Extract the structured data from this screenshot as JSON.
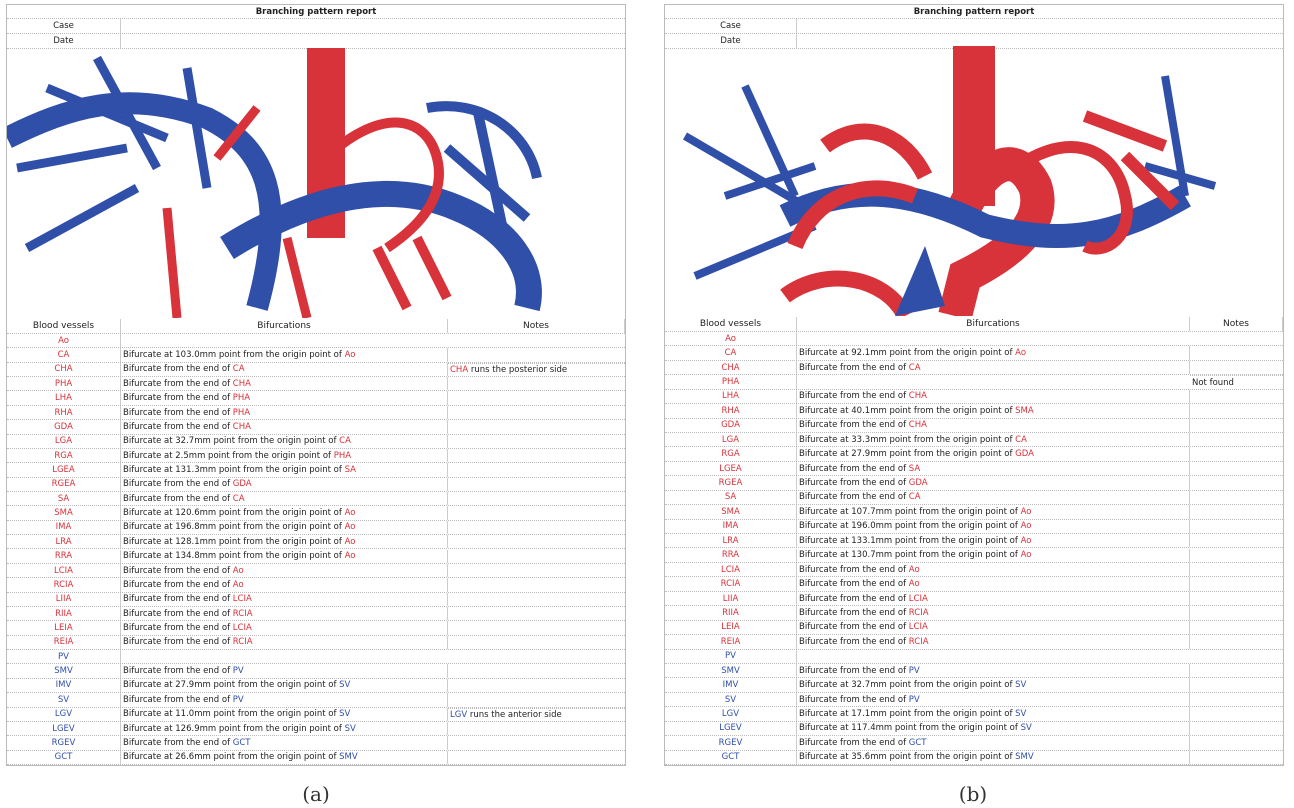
{
  "panels": [
    {
      "title": "Branching pattern report",
      "case_label": "Case",
      "date_label": "Date",
      "headers": [
        "Blood vessels",
        "Bifurcations",
        "Notes"
      ],
      "caption": "(a)",
      "artery_color": "#d8323a",
      "vein_color": "#2f4fa8",
      "arteries": [
        {
          "vessel": "Ao"
        },
        {
          "vessel": "CA",
          "bifurcation": {
            "text": "Bifurcate at 103.0mm point from the origin point of ",
            "ref": "Ao"
          }
        },
        {
          "vessel": "CHA",
          "bifurcation": {
            "text": "Bifurcate from the end of ",
            "ref": "CA"
          },
          "note": {
            "ref": "CHA",
            "text": " runs the posterior side"
          }
        },
        {
          "vessel": "PHA",
          "bifurcation": {
            "text": "Bifurcate from the end of ",
            "ref": "CHA"
          }
        },
        {
          "vessel": "LHA",
          "bifurcation": {
            "text": "Bifurcate from the end of ",
            "ref": "PHA"
          }
        },
        {
          "vessel": "RHA",
          "bifurcation": {
            "text": "Bifurcate from the end of ",
            "ref": "PHA"
          }
        },
        {
          "vessel": "GDA",
          "bifurcation": {
            "text": "Bifurcate from the end of ",
            "ref": "CHA"
          }
        },
        {
          "vessel": "LGA",
          "bifurcation": {
            "text": "Bifurcate at 32.7mm point from the origin point of ",
            "ref": "CA"
          }
        },
        {
          "vessel": "RGA",
          "bifurcation": {
            "text": "Bifurcate at 2.5mm point from the origin point of ",
            "ref": "PHA"
          }
        },
        {
          "vessel": "LGEA",
          "bifurcation": {
            "text": "Bifurcate at 131.3mm point from the origin point of ",
            "ref": "SA"
          }
        },
        {
          "vessel": "RGEA",
          "bifurcation": {
            "text": "Bifurcate from the end of ",
            "ref": "GDA"
          }
        },
        {
          "vessel": "SA",
          "bifurcation": {
            "text": "Bifurcate from the end of ",
            "ref": "CA"
          }
        },
        {
          "vessel": "SMA",
          "bifurcation": {
            "text": "Bifurcate at 120.6mm point from the origin point of ",
            "ref": "Ao"
          }
        },
        {
          "vessel": "IMA",
          "bifurcation": {
            "text": "Bifurcate at 196.8mm point from the origin point of ",
            "ref": "Ao"
          }
        },
        {
          "vessel": "LRA",
          "bifurcation": {
            "text": "Bifurcate at 128.1mm point from the origin point of ",
            "ref": "Ao"
          }
        },
        {
          "vessel": "RRA",
          "bifurcation": {
            "text": "Bifurcate at 134.8mm point from the origin point of ",
            "ref": "Ao"
          }
        },
        {
          "vessel": "LCIA",
          "bifurcation": {
            "text": "Bifurcate from the end of ",
            "ref": "Ao"
          }
        },
        {
          "vessel": "RCIA",
          "bifurcation": {
            "text": "Bifurcate from the end of ",
            "ref": "Ao"
          }
        },
        {
          "vessel": "LIIA",
          "bifurcation": {
            "text": "Bifurcate from the end of ",
            "ref": "LCIA"
          }
        },
        {
          "vessel": "RIIA",
          "bifurcation": {
            "text": "Bifurcate from the end of ",
            "ref": "RCIA"
          }
        },
        {
          "vessel": "LEIA",
          "bifurcation": {
            "text": "Bifurcate from the end of ",
            "ref": "LCIA"
          }
        },
        {
          "vessel": "REIA",
          "bifurcation": {
            "text": "Bifurcate from the end of ",
            "ref": "RCIA"
          }
        }
      ],
      "veins": [
        {
          "vessel": "PV"
        },
        {
          "vessel": "SMV",
          "bifurcation": {
            "text": "Bifurcate from the end of ",
            "ref": "PV"
          }
        },
        {
          "vessel": "IMV",
          "bifurcation": {
            "text": "Bifurcate at 27.9mm point from the origin point of ",
            "ref": "SV"
          }
        },
        {
          "vessel": "SV",
          "bifurcation": {
            "text": "Bifurcate from the end of ",
            "ref": "PV"
          }
        },
        {
          "vessel": "LGV",
          "bifurcation": {
            "text": "Bifurcate at 11.0mm point from the origin point of ",
            "ref": "SV"
          },
          "note": {
            "ref": "LGV",
            "text": " runs the anterior side"
          }
        },
        {
          "vessel": "LGEV",
          "bifurcation": {
            "text": "Bifurcate at 126.9mm point from the origin point of ",
            "ref": "SV"
          }
        },
        {
          "vessel": "RGEV",
          "bifurcation": {
            "text": "Bifurcate from the end of ",
            "ref": "GCT"
          }
        },
        {
          "vessel": "GCT",
          "bifurcation": {
            "text": "Bifurcate at 26.6mm point from the origin point of ",
            "ref": "SMV"
          }
        }
      ]
    },
    {
      "title": "Branching pattern report",
      "case_label": "Case",
      "date_label": "Date",
      "headers": [
        "Blood vessels",
        "Bifurcations",
        "Notes"
      ],
      "caption": "(b)",
      "artery_color": "#d8323a",
      "vein_color": "#2f4fa8",
      "arteries": [
        {
          "vessel": "Ao"
        },
        {
          "vessel": "CA",
          "bifurcation": {
            "text": "Bifurcate at 92.1mm point from the origin point of ",
            "ref": "Ao"
          }
        },
        {
          "vessel": "CHA",
          "bifurcation": {
            "text": "Bifurcate from the end of ",
            "ref": "CA"
          }
        },
        {
          "vessel": "PHA",
          "note": {
            "text": "Not found"
          }
        },
        {
          "vessel": "LHA",
          "bifurcation": {
            "text": "Bifurcate from the end of ",
            "ref": "CHA"
          }
        },
        {
          "vessel": "RHA",
          "bifurcation": {
            "text": "Bifurcate at 40.1mm point from the origin point of ",
            "ref": "SMA"
          }
        },
        {
          "vessel": "GDA",
          "bifurcation": {
            "text": "Bifurcate from the end of ",
            "ref": "CHA"
          }
        },
        {
          "vessel": "LGA",
          "bifurcation": {
            "text": "Bifurcate at 33.3mm point from the origin point of ",
            "ref": "CA"
          }
        },
        {
          "vessel": "RGA",
          "bifurcation": {
            "text": "Bifurcate at 27.9mm point from the origin point of ",
            "ref": "GDA"
          }
        },
        {
          "vessel": "LGEA",
          "bifurcation": {
            "text": "Bifurcate from the end of ",
            "ref": "SA"
          }
        },
        {
          "vessel": "RGEA",
          "bifurcation": {
            "text": "Bifurcate from the end of ",
            "ref": "GDA"
          }
        },
        {
          "vessel": "SA",
          "bifurcation": {
            "text": "Bifurcate from the end of ",
            "ref": "CA"
          }
        },
        {
          "vessel": "SMA",
          "bifurcation": {
            "text": "Bifurcate at 107.7mm point from the origin point of ",
            "ref": "Ao"
          }
        },
        {
          "vessel": "IMA",
          "bifurcation": {
            "text": "Bifurcate at 196.0mm point from the origin point of ",
            "ref": "Ao"
          }
        },
        {
          "vessel": "LRA",
          "bifurcation": {
            "text": "Bifurcate at 133.1mm point from the origin point of ",
            "ref": "Ao"
          }
        },
        {
          "vessel": "RRA",
          "bifurcation": {
            "text": "Bifurcate at 130.7mm point from the origin point of ",
            "ref": "Ao"
          }
        },
        {
          "vessel": "LCIA",
          "bifurcation": {
            "text": "Bifurcate from the end of ",
            "ref": "Ao"
          }
        },
        {
          "vessel": "RCIA",
          "bifurcation": {
            "text": "Bifurcate from the end of ",
            "ref": "Ao"
          }
        },
        {
          "vessel": "LIIA",
          "bifurcation": {
            "text": "Bifurcate from the end of ",
            "ref": "LCIA"
          }
        },
        {
          "vessel": "RIIA",
          "bifurcation": {
            "text": "Bifurcate from the end of ",
            "ref": "RCIA"
          }
        },
        {
          "vessel": "LEIA",
          "bifurcation": {
            "text": "Bifurcate from the end of ",
            "ref": "LCIA"
          }
        },
        {
          "vessel": "REIA",
          "bifurcation": {
            "text": "Bifurcate from the end of ",
            "ref": "RCIA"
          }
        }
      ],
      "veins": [
        {
          "vessel": "PV"
        },
        {
          "vessel": "SMV",
          "bifurcation": {
            "text": "Bifurcate from the end of ",
            "ref": "PV"
          }
        },
        {
          "vessel": "IMV",
          "bifurcation": {
            "text": "Bifurcate at 32.7mm point from the origin point of ",
            "ref": "SV"
          }
        },
        {
          "vessel": "SV",
          "bifurcation": {
            "text": "Bifurcate from the end of ",
            "ref": "PV"
          }
        },
        {
          "vessel": "LGV",
          "bifurcation": {
            "text": "Bifurcate at 17.1mm point from the origin point of ",
            "ref": "SV"
          }
        },
        {
          "vessel": "LGEV",
          "bifurcation": {
            "text": "Bifurcate at 117.4mm point from the origin point of ",
            "ref": "SV"
          }
        },
        {
          "vessel": "RGEV",
          "bifurcation": {
            "text": "Bifurcate from the end of ",
            "ref": "GCT"
          }
        },
        {
          "vessel": "GCT",
          "bifurcation": {
            "text": "Bifurcate at 35.6mm point from the origin point of ",
            "ref": "SMV"
          }
        }
      ]
    }
  ]
}
